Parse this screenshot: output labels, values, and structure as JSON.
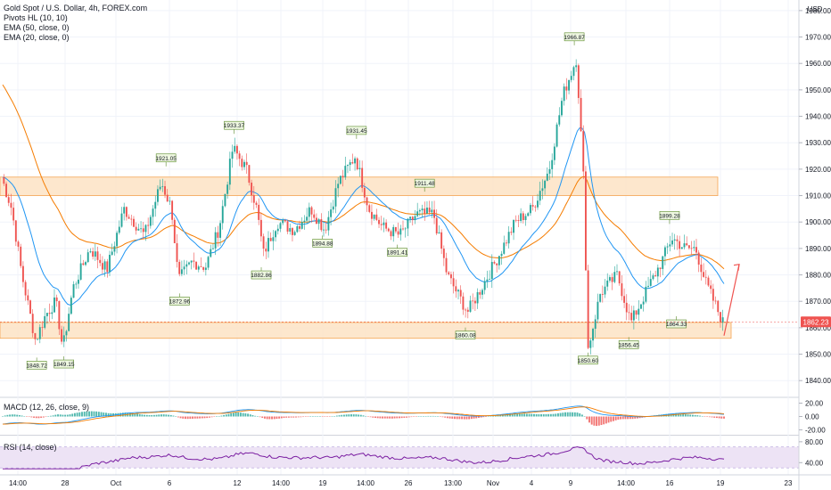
{
  "header": {
    "symbol": "Gold Spot / U.S. Dollar, 4h, FOREX.com",
    "indicators": [
      "Pivots HL (10, 10)",
      "EMA (50, close, 0)",
      "EMA (20, close, 0)"
    ],
    "currency": "USD"
  },
  "colors": {
    "up": "#26a69a",
    "down": "#ef5350",
    "ema20": "#2196f3",
    "ema50": "#f57c00",
    "zone_fill": "#fde3c4",
    "zone_stroke": "#f5a653",
    "rsi": "#7b1fa2",
    "rsi_band": "#ede3f5",
    "price_tag": "#ef5350",
    "pivot_box": "#eef7e0",
    "pivot_stroke": "#5a8a2a"
  },
  "chart_data": {
    "type": "candlestick",
    "price_axis": {
      "ticks": [
        "1980.00",
        "1970.00",
        "1960.00",
        "1950.00",
        "1940.00",
        "1930.00",
        "1920.00",
        "1910.00",
        "1900.00",
        "1890.00",
        "1880.00",
        "1870.00",
        "1860.00",
        "1850.00",
        "1840.00"
      ],
      "current_price": "1862.23",
      "ylim": [
        1834,
        1984
      ]
    },
    "x_axis_labels": [
      "14:00",
      "28",
      "Oct",
      "6",
      "12",
      "14:00",
      "19",
      "14:00",
      "26",
      "13:00",
      "Nov",
      "4",
      "9",
      "14:00",
      "16",
      "19",
      "23"
    ],
    "zones": [
      {
        "low": 1910,
        "high": 1917
      },
      {
        "low": 1856,
        "high": 1862
      }
    ],
    "pivots": [
      {
        "label": "1848.72",
        "kind": "low",
        "x": 0.5
      },
      {
        "label": "1849.15",
        "kind": "low",
        "x": 0.9
      },
      {
        "label": "1921.05",
        "kind": "high",
        "x": 2.4
      },
      {
        "label": "1872.96",
        "kind": "low",
        "x": 2.6
      },
      {
        "label": "1933.37",
        "kind": "high",
        "x": 3.4
      },
      {
        "label": "1882.86",
        "kind": "low",
        "x": 3.8
      },
      {
        "label": "1894.88",
        "kind": "low",
        "x": 4.7
      },
      {
        "label": "1931.45",
        "kind": "high",
        "x": 5.2
      },
      {
        "label": "1891.41",
        "kind": "low",
        "x": 5.8
      },
      {
        "label": "1911.48",
        "kind": "high",
        "x": 6.2
      },
      {
        "label": "1860.08",
        "kind": "low",
        "x": 6.8
      },
      {
        "label": "1966.87",
        "kind": "high",
        "x": 8.4
      },
      {
        "label": "1850.60",
        "kind": "low",
        "x": 8.6
      },
      {
        "label": "1856.45",
        "kind": "low",
        "x": 9.2
      },
      {
        "label": "1899.28",
        "kind": "high",
        "x": 9.8
      },
      {
        "label": "1864.33",
        "kind": "low",
        "x": 9.9
      }
    ],
    "path_keypoints": [
      [
        0,
        1917
      ],
      [
        0.15,
        1905
      ],
      [
        0.3,
        1880
      ],
      [
        0.5,
        1855
      ],
      [
        0.65,
        1865
      ],
      [
        0.8,
        1870
      ],
      [
        0.9,
        1852
      ],
      [
        1.05,
        1875
      ],
      [
        1.3,
        1890
      ],
      [
        1.55,
        1882
      ],
      [
        1.8,
        1905
      ],
      [
        2.1,
        1895
      ],
      [
        2.35,
        1915
      ],
      [
        2.5,
        1905
      ],
      [
        2.6,
        1878
      ],
      [
        2.8,
        1885
      ],
      [
        3.0,
        1883
      ],
      [
        3.2,
        1898
      ],
      [
        3.4,
        1928
      ],
      [
        3.6,
        1920
      ],
      [
        3.75,
        1905
      ],
      [
        3.85,
        1888
      ],
      [
        4.05,
        1900
      ],
      [
        4.3,
        1897
      ],
      [
        4.55,
        1905
      ],
      [
        4.75,
        1897
      ],
      [
        4.95,
        1915
      ],
      [
        5.2,
        1925
      ],
      [
        5.4,
        1905
      ],
      [
        5.6,
        1898
      ],
      [
        5.85,
        1895
      ],
      [
        6.1,
        1903
      ],
      [
        6.35,
        1903
      ],
      [
        6.55,
        1880
      ],
      [
        6.85,
        1866
      ],
      [
        7.05,
        1875
      ],
      [
        7.3,
        1887
      ],
      [
        7.55,
        1900
      ],
      [
        7.8,
        1905
      ],
      [
        8.05,
        1920
      ],
      [
        8.25,
        1948
      ],
      [
        8.45,
        1962
      ],
      [
        8.55,
        1918
      ],
      [
        8.62,
        1852
      ],
      [
        8.8,
        1873
      ],
      [
        9.05,
        1880
      ],
      [
        9.25,
        1862
      ],
      [
        9.5,
        1875
      ],
      [
        9.7,
        1885
      ],
      [
        9.85,
        1894
      ],
      [
        10.05,
        1890
      ],
      [
        10.2,
        1890
      ],
      [
        10.35,
        1877
      ],
      [
        10.5,
        1868
      ],
      [
        10.6,
        1862
      ]
    ],
    "macd": {
      "label": "MACD (12, 26, close, 9)",
      "ticks": [
        "20.00",
        "0.00",
        "-20.00"
      ],
      "ylim": [
        -26,
        26
      ]
    },
    "rsi": {
      "label": "RSI (14, close)",
      "ticks": [
        "80.00",
        "40.00"
      ],
      "ylim": [
        20,
        90
      ],
      "band": [
        30,
        70
      ]
    }
  }
}
